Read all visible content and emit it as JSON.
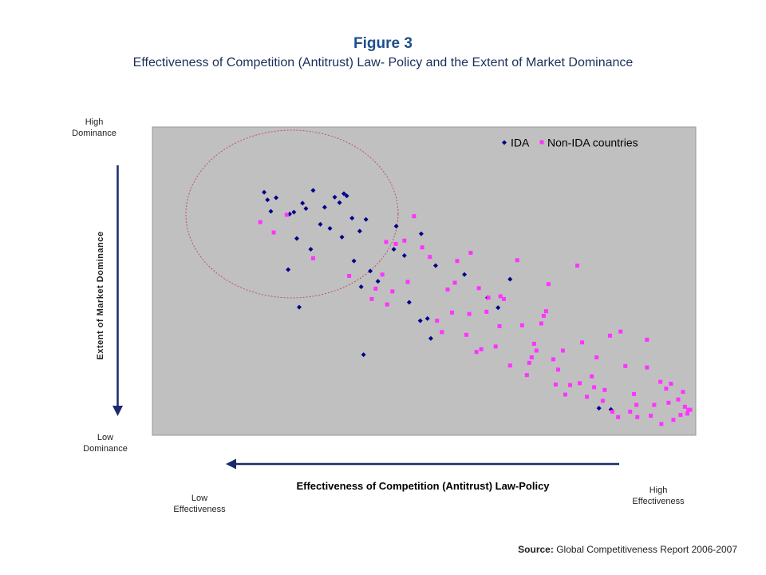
{
  "header": {
    "figure_label": "Figure 3",
    "subtitle": "Effectiveness of Competition (Antitrust) Law- Policy and the Extent of Market Dominance"
  },
  "labels": {
    "high_dominance": [
      "High",
      "Dominance"
    ],
    "low_dominance": [
      "Low",
      "Dominance"
    ],
    "low_effectiveness": [
      "Low",
      "Effectiveness"
    ],
    "high_effectiveness": [
      "High",
      "Effectiveness"
    ]
  },
  "source": {
    "prefix": "Source:",
    "text": "Global Competitiveness Report 2006-2007"
  },
  "colors": {
    "plot_bg": "#c0c0c0",
    "ida": "#00008b",
    "non_ida": "#ff33ff",
    "arrow": "#1a2a6c",
    "ellipse": "#c0506a",
    "title": "#1f4e8c"
  },
  "chart_data": {
    "type": "scatter",
    "title": "Figure 3",
    "subtitle": "Effectiveness of Competition (Antitrust) Law- Policy and the Extent of Market Dominance",
    "xlabel": "Effectiveness of Competition (Antitrust) Law-Policy",
    "ylabel": "Extent of Market Dominance",
    "x_direction": "reversed",
    "y_direction": "reversed",
    "xlim": [
      0,
      100
    ],
    "ylim": [
      0,
      100
    ],
    "grid": false,
    "legend_position": "top-right",
    "annotation": "ellipse around top-left cluster",
    "series": [
      {
        "name": "IDA",
        "marker": "diamond",
        "points": [
          [
            11.3,
            88.3
          ],
          [
            12.0,
            85.5
          ],
          [
            12.7,
            81.3
          ],
          [
            13.8,
            86.3
          ],
          [
            16.3,
            59.8
          ],
          [
            16.6,
            80.3
          ],
          [
            17.5,
            81.0
          ],
          [
            18.1,
            71.3
          ],
          [
            18.6,
            46.0
          ],
          [
            19.3,
            84.3
          ],
          [
            20.0,
            82.3
          ],
          [
            21.0,
            67.3
          ],
          [
            21.5,
            89.0
          ],
          [
            23.0,
            76.5
          ],
          [
            23.9,
            82.8
          ],
          [
            25.0,
            75.0
          ],
          [
            26.0,
            86.5
          ],
          [
            27.5,
            71.8
          ],
          [
            27.0,
            84.5
          ],
          [
            28.5,
            87.0
          ],
          [
            27.9,
            87.8
          ],
          [
            29.6,
            78.8
          ],
          [
            30.0,
            63.0
          ],
          [
            31.2,
            74.0
          ],
          [
            31.5,
            53.5
          ],
          [
            32.5,
            78.3
          ],
          [
            32.0,
            28.5
          ],
          [
            33.4,
            59.3
          ],
          [
            35.0,
            55.5
          ],
          [
            38.8,
            75.8
          ],
          [
            38.3,
            67.3
          ],
          [
            40.5,
            65.0
          ],
          [
            44.0,
            73.0
          ],
          [
            41.5,
            47.8
          ],
          [
            43.8,
            41.0
          ],
          [
            45.3,
            41.8
          ],
          [
            46.0,
            34.5
          ],
          [
            47.0,
            61.3
          ],
          [
            53.0,
            58.0
          ],
          [
            57.8,
            49.5
          ],
          [
            60.0,
            45.8
          ],
          [
            62.5,
            56.3
          ],
          [
            81.0,
            8.8
          ],
          [
            83.5,
            8.3
          ]
        ]
      },
      {
        "name": "Non-IDA countries",
        "marker": "square",
        "points": [
          [
            10.5,
            77.3
          ],
          [
            13.3,
            73.5
          ],
          [
            16.0,
            80.0
          ],
          [
            21.5,
            64.0
          ],
          [
            29.0,
            57.5
          ],
          [
            33.7,
            49.0
          ],
          [
            34.5,
            52.8
          ],
          [
            35.9,
            58.0
          ],
          [
            36.7,
            70.0
          ],
          [
            36.9,
            47.0
          ],
          [
            38.0,
            51.8
          ],
          [
            38.7,
            69.3
          ],
          [
            40.5,
            70.5
          ],
          [
            41.2,
            55.3
          ],
          [
            42.5,
            79.5
          ],
          [
            44.2,
            68.0
          ],
          [
            45.8,
            64.5
          ],
          [
            47.3,
            41.0
          ],
          [
            48.3,
            36.8
          ],
          [
            49.5,
            52.5
          ],
          [
            50.4,
            44.0
          ],
          [
            51.0,
            55.0
          ],
          [
            51.5,
            63.0
          ],
          [
            53.4,
            35.8
          ],
          [
            54.0,
            43.5
          ],
          [
            54.3,
            66.0
          ],
          [
            55.5,
            29.5
          ],
          [
            56.0,
            53.0
          ],
          [
            56.5,
            30.5
          ],
          [
            57.6,
            44.3
          ],
          [
            58.0,
            49.5
          ],
          [
            59.5,
            31.5
          ],
          [
            60.3,
            39.0
          ],
          [
            60.5,
            50.0
          ],
          [
            61.2,
            49.0
          ],
          [
            62.5,
            24.5
          ],
          [
            64.0,
            63.3
          ],
          [
            65.0,
            39.3
          ],
          [
            66.0,
            21.0
          ],
          [
            66.5,
            25.5
          ],
          [
            67.0,
            27.5
          ],
          [
            67.5,
            32.5
          ],
          [
            68.0,
            30.0
          ],
          [
            69.0,
            40.0
          ],
          [
            69.5,
            42.8
          ],
          [
            70.0,
            44.5
          ],
          [
            70.5,
            54.5
          ],
          [
            71.5,
            26.8
          ],
          [
            72.0,
            17.5
          ],
          [
            72.5,
            23.0
          ],
          [
            73.5,
            30.0
          ],
          [
            74.0,
            13.8
          ],
          [
            75.0,
            17.3
          ],
          [
            76.5,
            61.3
          ],
          [
            77.0,
            18.0
          ],
          [
            77.5,
            33.0
          ],
          [
            78.5,
            13.0
          ],
          [
            79.5,
            20.5
          ],
          [
            80.0,
            16.5
          ],
          [
            80.5,
            27.5
          ],
          [
            81.8,
            11.5
          ],
          [
            82.2,
            15.5
          ],
          [
            83.3,
            35.5
          ],
          [
            83.8,
            7.5
          ],
          [
            85.0,
            5.5
          ],
          [
            85.5,
            37.0
          ],
          [
            86.5,
            24.3
          ],
          [
            87.5,
            7.5
          ],
          [
            88.3,
            14.0
          ],
          [
            88.8,
            10.0
          ],
          [
            89.0,
            5.5
          ],
          [
            91.0,
            23.8
          ],
          [
            91.0,
            34.0
          ],
          [
            91.8,
            6.0
          ],
          [
            92.5,
            10.0
          ],
          [
            93.8,
            18.5
          ],
          [
            94.0,
            3.0
          ],
          [
            95.0,
            16.0
          ],
          [
            95.5,
            10.8
          ],
          [
            96.0,
            17.8
          ],
          [
            96.5,
            4.5
          ],
          [
            97.5,
            12.0
          ],
          [
            98.0,
            6.3
          ],
          [
            98.5,
            14.8
          ],
          [
            98.9,
            9.3
          ],
          [
            99.6,
            8.2
          ],
          [
            100.0,
            8.2
          ],
          [
            99.4,
            6.8
          ]
        ]
      }
    ]
  }
}
